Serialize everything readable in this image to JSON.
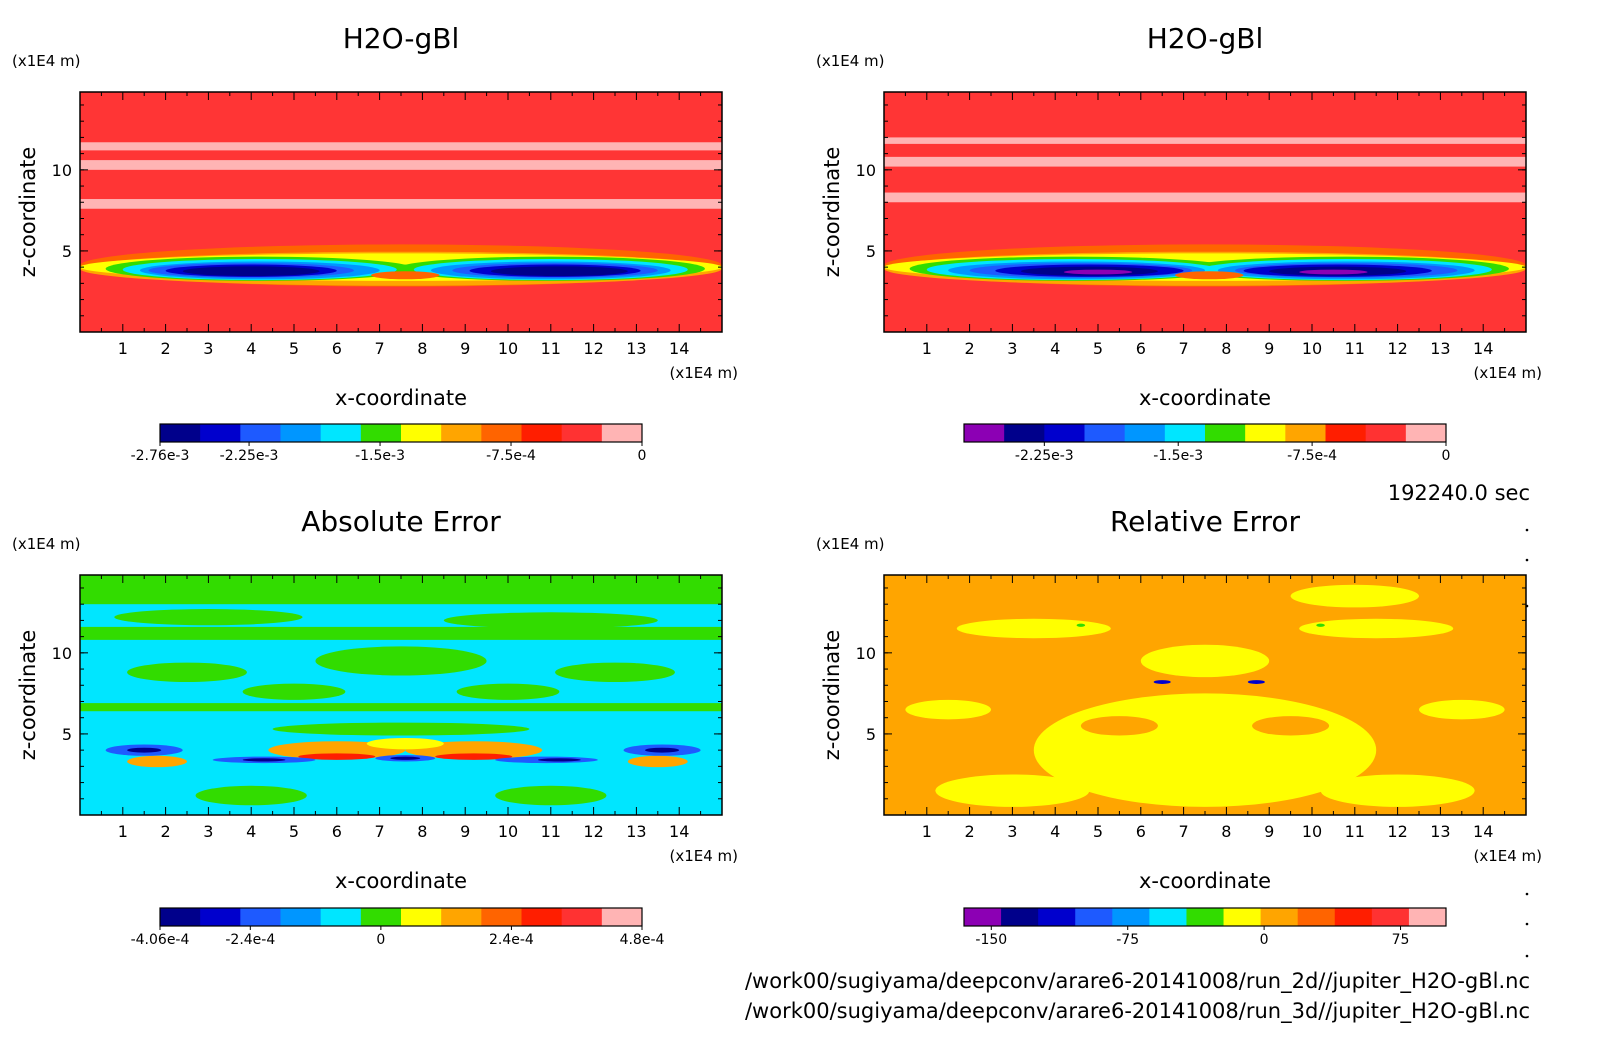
{
  "time_label": "192240.0 sec",
  "file_paths": [
    "/work00/sugiyama/deepconv/arare6-20141008/run_2d//jupiter_H2O-gBl.nc",
    "/work00/sugiyama/deepconv/arare6-20141008/run_3d//jupiter_H2O-gBl.nc"
  ],
  "chart_data": [
    {
      "type": "heatmap",
      "title": "H2O-gBl",
      "xlabel": "x-coordinate",
      "ylabel": "z-coordinate",
      "x_unit": "(x1E4 m)",
      "z_unit": "(x1E4 m)",
      "xlim": [
        0,
        15
      ],
      "ylim": [
        0,
        14.8
      ],
      "x_ticks": [
        "1",
        "2",
        "3",
        "4",
        "5",
        "6",
        "7",
        "8",
        "9",
        "10",
        "11",
        "12",
        "13",
        "14"
      ],
      "z_ticks": [
        "5",
        "10"
      ],
      "colorbar": {
        "colors": [
          "#00008b",
          "#0000cd",
          "#1e5aff",
          "#0096ff",
          "#00e6ff",
          "#32dc00",
          "#ffff00",
          "#ffa500",
          "#ff6400",
          "#ff1e00",
          "#ff3232",
          "#ffb4b4"
        ],
        "labels": [
          "-2.76e-3",
          "-2.25e-3",
          "-1.5e-3",
          "-7.5e-4",
          "0"
        ],
        "range": [
          -0.00276,
          0
        ]
      },
      "features": "uniform value near 0 above z=5 with pale bands at z≈8, 10.5, 11.5; strong minimum band (≈-2.7e-3) centred at z≈3.8, x≈2-6 and x≈9-13"
    },
    {
      "type": "heatmap",
      "title": "H2O-gBl",
      "xlabel": "x-coordinate",
      "ylabel": "z-coordinate",
      "x_unit": "(x1E4 m)",
      "z_unit": "(x1E4 m)",
      "xlim": [
        0,
        15
      ],
      "ylim": [
        0,
        14.8
      ],
      "x_ticks": [
        "1",
        "2",
        "3",
        "4",
        "5",
        "6",
        "7",
        "8",
        "9",
        "10",
        "11",
        "12",
        "13",
        "14"
      ],
      "z_ticks": [
        "5",
        "10"
      ],
      "colorbar": {
        "colors": [
          "#8c00b4",
          "#00008b",
          "#0000cd",
          "#1e5aff",
          "#0096ff",
          "#00e6ff",
          "#32dc00",
          "#ffff00",
          "#ffa500",
          "#ff1e00",
          "#ff3232",
          "#ffb4b4"
        ],
        "labels": [
          "-2.25e-3",
          "-1.5e-3",
          "-7.5e-4",
          "0"
        ],
        "range": [
          -0.0027,
          0
        ]
      },
      "features": "similar structure with purple cores at x≈5 and x≈10.5, z≈3.8"
    },
    {
      "type": "heatmap",
      "title": "Absolute Error",
      "xlabel": "x-coordinate",
      "ylabel": "z-coordinate",
      "x_unit": "(x1E4 m)",
      "z_unit": "(x1E4 m)",
      "xlim": [
        0,
        15
      ],
      "ylim": [
        0,
        14.8
      ],
      "x_ticks": [
        "1",
        "2",
        "3",
        "4",
        "5",
        "6",
        "7",
        "8",
        "9",
        "10",
        "11",
        "12",
        "13",
        "14"
      ],
      "z_ticks": [
        "5",
        "10"
      ],
      "colorbar": {
        "colors": [
          "#00008b",
          "#0000cd",
          "#1e5aff",
          "#0096ff",
          "#00e6ff",
          "#32dc00",
          "#ffff00",
          "#ffa500",
          "#ff6400",
          "#ff1e00",
          "#ff3232",
          "#ffb4b4"
        ],
        "labels": [
          "-4.06e-4",
          "-2.4e-4",
          "0",
          "2.4e-4",
          "4.8e-4"
        ],
        "range": [
          -0.000406,
          0.00048
        ]
      },
      "features": "cyan/green patchy field; positive (orange-red) lobes at z≈3.5-4.2 near x≈2, 5-7, 8-10, 13; negative (blue) at x≈1.5, 4, 7.5, 11, 13"
    },
    {
      "type": "heatmap",
      "title": "Relative Error",
      "xlabel": "x-coordinate",
      "ylabel": "z-coordinate",
      "x_unit": "(x1E4 m)",
      "z_unit": "(x1E4 m)",
      "xlim": [
        0,
        15
      ],
      "ylim": [
        0,
        14.8
      ],
      "x_ticks": [
        "1",
        "2",
        "3",
        "4",
        "5",
        "6",
        "7",
        "8",
        "9",
        "10",
        "11",
        "12",
        "13",
        "14"
      ],
      "z_ticks": [
        "5",
        "10"
      ],
      "colorbar": {
        "colors": [
          "#8c00b4",
          "#00008b",
          "#0000cd",
          "#1e5aff",
          "#0096ff",
          "#00e6ff",
          "#32dc00",
          "#ffff00",
          "#ffa500",
          "#ff6400",
          "#ff1e00",
          "#ff3232",
          "#ffb4b4"
        ],
        "labels": [
          "-150",
          "-75",
          "0",
          "75"
        ],
        "range": [
          -165,
          100
        ]
      },
      "features": "orange/yellow field with small blue spots near z≈8.2 at x≈6.5 and x≈8.7"
    }
  ]
}
